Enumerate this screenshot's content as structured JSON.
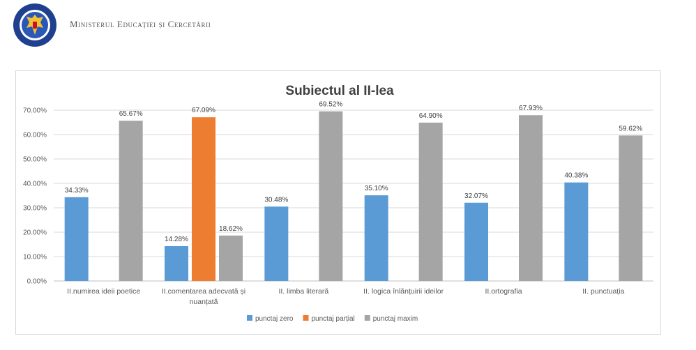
{
  "header": {
    "ministry_name": "Ministerul Educației și Cercetării",
    "crest_icon": "guvernul-romaniei-crest-icon",
    "crest_text": "GUVERNUL ROMÂNIEI"
  },
  "chart_data": {
    "type": "bar",
    "title": "Subiectul al II-lea",
    "categories": [
      [
        "II.numirea ideii poetice"
      ],
      [
        "II.comentarea adecvată și",
        "nuanțată"
      ],
      [
        "II. limba literară"
      ],
      [
        "II. logica înlănțuirii ideilor"
      ],
      [
        "II.ortografia"
      ],
      [
        "II. punctuația"
      ]
    ],
    "series": [
      {
        "name": "punctaj zero",
        "color": "#5b9bd5",
        "values": [
          34.33,
          14.28,
          30.48,
          35.1,
          32.07,
          40.38
        ]
      },
      {
        "name": "punctaj parțial",
        "color": "#ed7d31",
        "values": [
          null,
          67.09,
          null,
          null,
          null,
          null
        ]
      },
      {
        "name": "punctaj maxim",
        "color": "#a5a5a5",
        "values": [
          65.67,
          18.62,
          69.52,
          64.9,
          67.93,
          59.62
        ]
      }
    ],
    "data_labels": [
      [
        "34.33%",
        "",
        "65.67%"
      ],
      [
        "14.28%",
        "67.09%",
        "18.62%"
      ],
      [
        "30.48%",
        "",
        "69.52%"
      ],
      [
        "35.10%",
        "",
        "64.90%"
      ],
      [
        "32.07%",
        "",
        "67.93%"
      ],
      [
        "40.38%",
        "",
        "59.62%"
      ]
    ],
    "yticks": [
      "0.00%",
      "10.00%",
      "20.00%",
      "30.00%",
      "40.00%",
      "50.00%",
      "60.00%",
      "70.00%"
    ],
    "ylim": [
      0,
      70
    ],
    "grid": true,
    "legend_position": "bottom"
  }
}
